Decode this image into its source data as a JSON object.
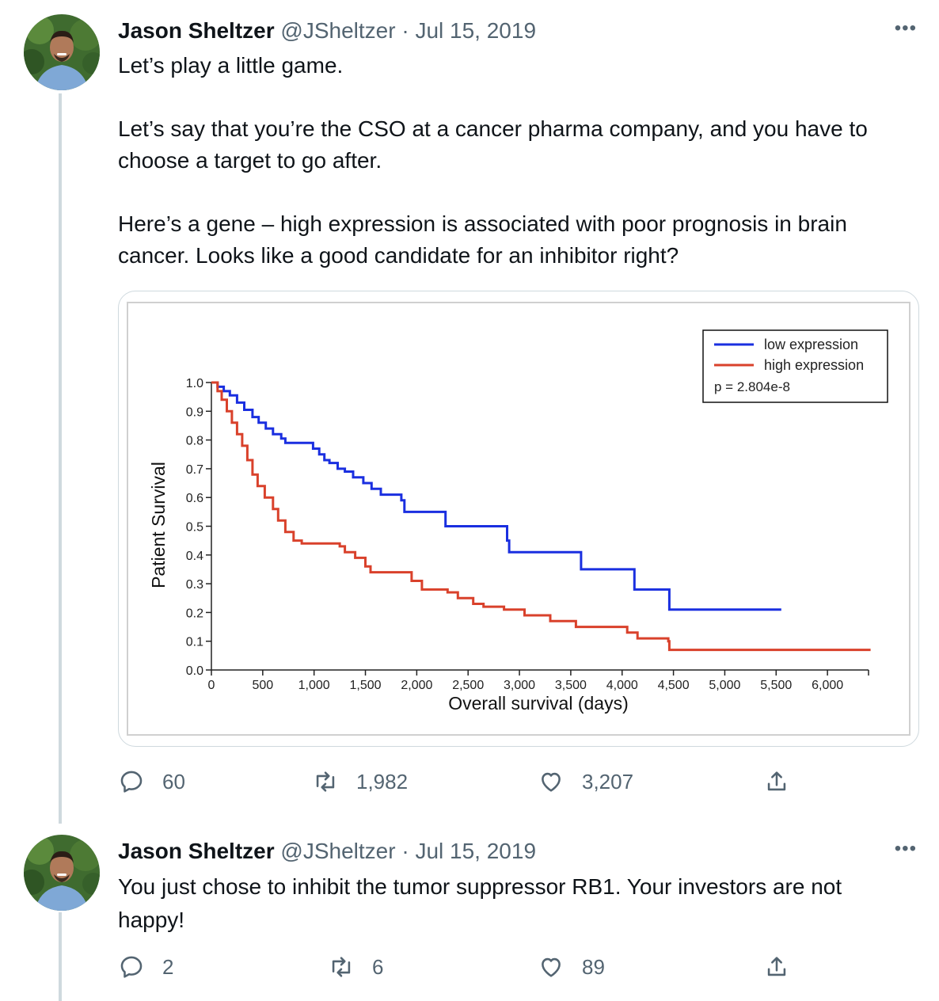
{
  "tweets": [
    {
      "author": {
        "name": "Jason Sheltzer",
        "handle": "@JSheltzer",
        "avatar": "avatar-photo"
      },
      "separator": "·",
      "date": "Jul 15, 2019",
      "more_icon": "more-horizontal-icon",
      "text": [
        "Let’s play a little game.",
        "Let’s say that you’re the CSO at a cancer pharma company, and you have to choose a target to go after.",
        "Here’s a gene – high expression is associated with poor prognosis in brain cancer. Looks like a good candidate for an inhibitor right?"
      ],
      "actions": {
        "replies": "60",
        "retweets": "1,982",
        "likes": "3,207",
        "share_icon": "share-icon"
      }
    },
    {
      "author": {
        "name": "Jason Sheltzer",
        "handle": "@JSheltzer",
        "avatar": "avatar-photo"
      },
      "separator": "·",
      "date": "Jul 15, 2019",
      "more_icon": "more-horizontal-icon",
      "text": [
        "You just chose to inhibit the tumor suppressor RB1. Your investors are not happy!"
      ],
      "actions": {
        "replies": "2",
        "retweets": "6",
        "likes": "89",
        "share_icon": "share-icon"
      }
    }
  ],
  "colors": {
    "low": "#1a2fe0",
    "high": "#d9412b",
    "muted": "#536471"
  },
  "chart_data": {
    "type": "line",
    "xlabel": "Overall survival (days)",
    "ylabel": "Patient Survival",
    "xlim": [
      0,
      6400
    ],
    "ylim": [
      0,
      1.0
    ],
    "x_ticks": [
      0,
      500,
      1000,
      1500,
      2000,
      2500,
      3000,
      3500,
      4000,
      4500,
      5000,
      5500,
      6000
    ],
    "x_tick_labels": [
      "0",
      "500",
      "1,000",
      "1,500",
      "2,000",
      "2,500",
      "3,000",
      "3,500",
      "4,000",
      "4,500",
      "5,000",
      "5,500",
      "6,000"
    ],
    "y_ticks": [
      0.0,
      0.1,
      0.2,
      0.3,
      0.4,
      0.5,
      0.6,
      0.7,
      0.8,
      0.9,
      1.0
    ],
    "y_tick_labels": [
      "0.0",
      "0.1",
      "0.2",
      "0.3",
      "0.4",
      "0.5",
      "0.6",
      "0.7",
      "0.8",
      "0.9",
      "1.0"
    ],
    "legend_position": "top-right",
    "legend_note": "p = 2.804e-8",
    "series": [
      {
        "name": "low expression",
        "color": "#1a2fe0",
        "points": [
          [
            0,
            1.0
          ],
          [
            60,
            0.985
          ],
          [
            120,
            0.97
          ],
          [
            180,
            0.955
          ],
          [
            250,
            0.93
          ],
          [
            320,
            0.905
          ],
          [
            400,
            0.88
          ],
          [
            460,
            0.86
          ],
          [
            530,
            0.84
          ],
          [
            600,
            0.82
          ],
          [
            680,
            0.805
          ],
          [
            720,
            0.79
          ],
          [
            960,
            0.79
          ],
          [
            990,
            0.77
          ],
          [
            1050,
            0.75
          ],
          [
            1100,
            0.73
          ],
          [
            1150,
            0.72
          ],
          [
            1230,
            0.7
          ],
          [
            1300,
            0.69
          ],
          [
            1380,
            0.67
          ],
          [
            1480,
            0.65
          ],
          [
            1560,
            0.63
          ],
          [
            1650,
            0.61
          ],
          [
            1850,
            0.59
          ],
          [
            1880,
            0.55
          ],
          [
            2250,
            0.55
          ],
          [
            2280,
            0.5
          ],
          [
            2850,
            0.5
          ],
          [
            2880,
            0.45
          ],
          [
            2900,
            0.41
          ],
          [
            3580,
            0.41
          ],
          [
            3600,
            0.35
          ],
          [
            4100,
            0.35
          ],
          [
            4120,
            0.28
          ],
          [
            4450,
            0.28
          ],
          [
            4460,
            0.21
          ],
          [
            5550,
            0.21
          ]
        ]
      },
      {
        "name": "high expression",
        "color": "#d9412b",
        "points": [
          [
            0,
            1.0
          ],
          [
            60,
            0.97
          ],
          [
            100,
            0.94
          ],
          [
            150,
            0.9
          ],
          [
            200,
            0.86
          ],
          [
            250,
            0.82
          ],
          [
            300,
            0.78
          ],
          [
            350,
            0.73
          ],
          [
            400,
            0.68
          ],
          [
            450,
            0.64
          ],
          [
            520,
            0.6
          ],
          [
            600,
            0.56
          ],
          [
            650,
            0.52
          ],
          [
            720,
            0.48
          ],
          [
            800,
            0.45
          ],
          [
            880,
            0.44
          ],
          [
            1000,
            0.44
          ],
          [
            1250,
            0.43
          ],
          [
            1300,
            0.41
          ],
          [
            1400,
            0.39
          ],
          [
            1500,
            0.36
          ],
          [
            1550,
            0.34
          ],
          [
            1900,
            0.34
          ],
          [
            1950,
            0.31
          ],
          [
            2050,
            0.28
          ],
          [
            2300,
            0.27
          ],
          [
            2400,
            0.25
          ],
          [
            2550,
            0.23
          ],
          [
            2650,
            0.22
          ],
          [
            2850,
            0.21
          ],
          [
            3050,
            0.19
          ],
          [
            3300,
            0.17
          ],
          [
            3550,
            0.15
          ],
          [
            4050,
            0.13
          ],
          [
            4150,
            0.11
          ],
          [
            4450,
            0.1
          ],
          [
            4460,
            0.07
          ],
          [
            6420,
            0.07
          ]
        ]
      }
    ]
  }
}
